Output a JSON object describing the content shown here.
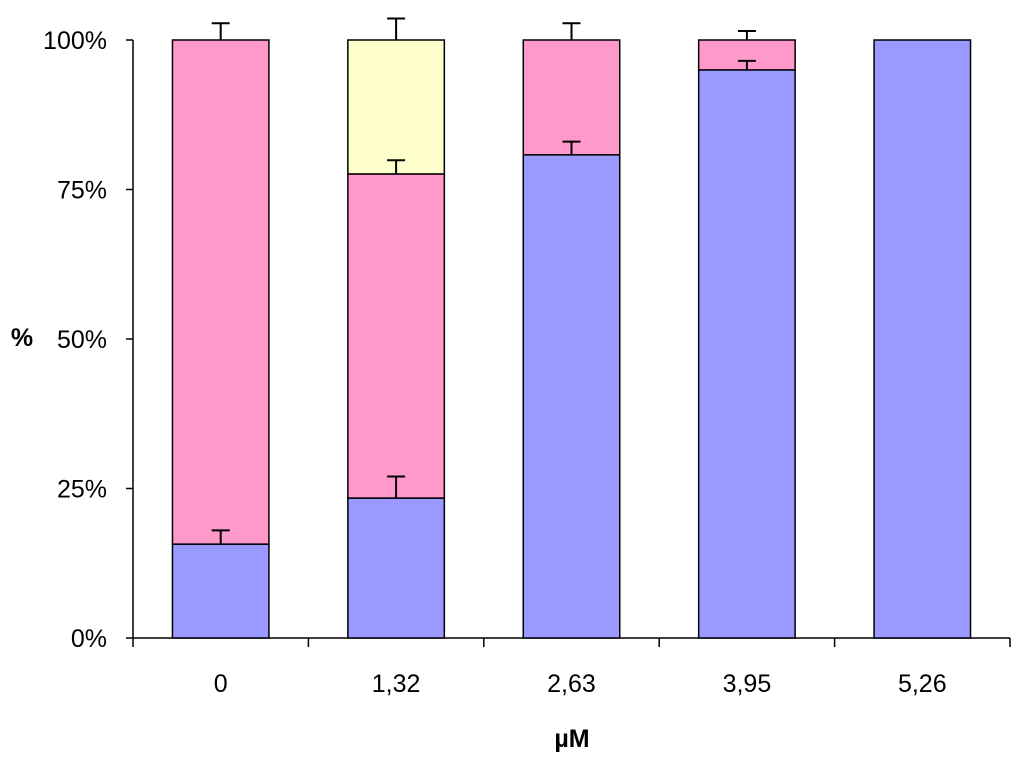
{
  "chart_data": {
    "type": "bar",
    "stacked": true,
    "percent_stacked": true,
    "categories": [
      "0",
      "1,32",
      "2,63",
      "3,95",
      "5,26"
    ],
    "series": [
      {
        "color": "#9999ff",
        "values": [
          15.7,
          23.4,
          80.8,
          95.0,
          100.0
        ],
        "error_plus": [
          2.3,
          3.6,
          2.2,
          1.5,
          0
        ]
      },
      {
        "color": "#ff99cc",
        "values": [
          84.3,
          54.2,
          19.2,
          5.0,
          0.0
        ],
        "error_plus": [
          2.8,
          2.3,
          2.8,
          1.5,
          0
        ]
      },
      {
        "color": "#ffffcc",
        "values": [
          0.0,
          22.4,
          0.0,
          0.0,
          0.0
        ],
        "error_plus": [
          0,
          3.6,
          0,
          0,
          0
        ]
      }
    ],
    "xlabel": "µM",
    "ylabel": "%",
    "ylim": [
      0,
      100
    ],
    "yticks": [
      "0%",
      "25%",
      "50%",
      "75%",
      "100%"
    ],
    "grid": false,
    "legend": "none"
  }
}
